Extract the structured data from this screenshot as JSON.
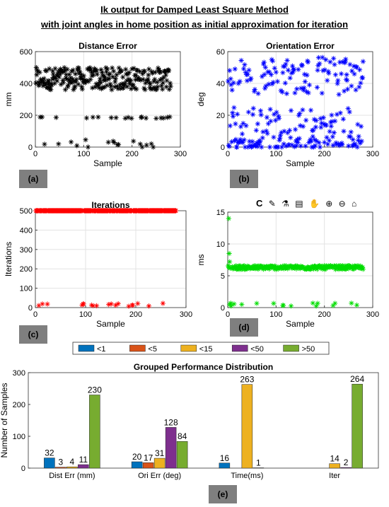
{
  "header": {
    "line1": "Ik output for Damped Least Square Method",
    "line2": "with joint angles in home position as initial approximation for iteration"
  },
  "toolbar_icons": [
    "C",
    "brush-icon",
    "flask-icon",
    "datatip-icon",
    "pan-icon",
    "zoom-in-icon",
    "zoom-out-icon",
    "home-icon"
  ],
  "panels": {
    "a": "(a)",
    "b": "(b)",
    "c": "(c)",
    "d": "(d)",
    "e": "(e)"
  },
  "chart_data": [
    {
      "id": "a",
      "type": "scatter",
      "title": "Distance Error",
      "xlabel": "Sample",
      "ylabel": "mm",
      "xlim": [
        0,
        300
      ],
      "ylim": [
        0,
        600
      ],
      "xticks": [
        0,
        100,
        200,
        300
      ],
      "yticks": [
        0,
        200,
        400,
        600
      ],
      "grid": true,
      "marker": "*",
      "color": "#000000",
      "n": 280,
      "clusters": [
        {
          "share": 0.82,
          "y_mean": 430,
          "y_spread": 70
        },
        {
          "share": 0.1,
          "y_mean": 185,
          "y_spread": 5
        },
        {
          "share": 0.08,
          "y_mean": 20,
          "y_spread": 30
        }
      ]
    },
    {
      "id": "b",
      "type": "scatter",
      "title": "Orientation Error",
      "xlabel": "Sample",
      "ylabel": "deg",
      "xlim": [
        0,
        300
      ],
      "ylim": [
        0,
        60
      ],
      "xticks": [
        0,
        100,
        200,
        300
      ],
      "yticks": [
        0,
        20,
        40,
        60
      ],
      "grid": true,
      "marker": "*",
      "color": "#0000ff",
      "n": 280,
      "clusters": [
        {
          "share": 0.45,
          "y_mean": 45,
          "y_spread": 12
        },
        {
          "share": 0.25,
          "y_mean": 15,
          "y_spread": 10
        },
        {
          "share": 0.3,
          "y_mean": 2,
          "y_spread": 3
        }
      ]
    },
    {
      "id": "c",
      "type": "scatter",
      "title": "Iterations",
      "xlabel": "Sample",
      "ylabel": "Iterations",
      "xlim": [
        0,
        300
      ],
      "ylim": [
        0,
        500
      ],
      "xticks": [
        0,
        100,
        200,
        300
      ],
      "yticks": [
        0,
        100,
        200,
        300,
        400,
        500
      ],
      "grid": true,
      "marker": "*",
      "color": "#ff0000",
      "n": 280,
      "clusters": [
        {
          "share": 0.94,
          "y_mean": 500,
          "y_spread": 0
        },
        {
          "share": 0.06,
          "y_mean": 15,
          "y_spread": 8
        }
      ]
    },
    {
      "id": "d",
      "type": "scatter",
      "title": "",
      "xlabel": "Sample",
      "ylabel": "ms",
      "xlim": [
        0,
        300
      ],
      "ylim": [
        0,
        15
      ],
      "xticks": [
        0,
        100,
        200,
        300
      ],
      "yticks": [
        0,
        5,
        10,
        15
      ],
      "grid": true,
      "marker": "*",
      "color": "#00dd00",
      "n": 280,
      "clusters": [
        {
          "share": 0.94,
          "y_mean": 6.3,
          "y_spread": 0.3
        },
        {
          "share": 0.06,
          "y_mean": 0.5,
          "y_spread": 0.3
        }
      ],
      "outliers": [
        [
          2,
          14
        ],
        [
          3,
          8.5
        ],
        [
          4,
          7.2
        ]
      ]
    },
    {
      "id": "e",
      "type": "bar",
      "title": "Grouped Performance Distribution",
      "xlabel": "",
      "ylabel": "Number of Samples",
      "ylim": [
        0,
        300
      ],
      "yticks": [
        0,
        100,
        200,
        300
      ],
      "categories": [
        "Dist Err (mm)",
        "Ori Err (deg)",
        "Time(ms)",
        "Iter"
      ],
      "legend_position": "top",
      "series": [
        {
          "name": "<1",
          "color": "#0072bd",
          "values": [
            32,
            20,
            16,
            0
          ],
          "labels": [
            "32",
            "20",
            "16",
            ""
          ]
        },
        {
          "name": "<5",
          "color": "#d95319",
          "values": [
            3,
            17,
            0,
            0
          ],
          "labels": [
            "3",
            "17",
            "",
            ""
          ]
        },
        {
          "name": "<15",
          "color": "#edb120",
          "values": [
            4,
            31,
            263,
            14
          ],
          "labels": [
            "4",
            "31",
            "263",
            "14"
          ]
        },
        {
          "name": "<50",
          "color": "#7e2f8e",
          "values": [
            11,
            128,
            1,
            2
          ],
          "labels": [
            "11",
            "128",
            "1",
            "2"
          ]
        },
        {
          "name": ">50",
          "color": "#77ac30",
          "values": [
            230,
            84,
            0,
            264
          ],
          "labels": [
            "230",
            "84",
            "",
            "264"
          ]
        }
      ]
    }
  ]
}
